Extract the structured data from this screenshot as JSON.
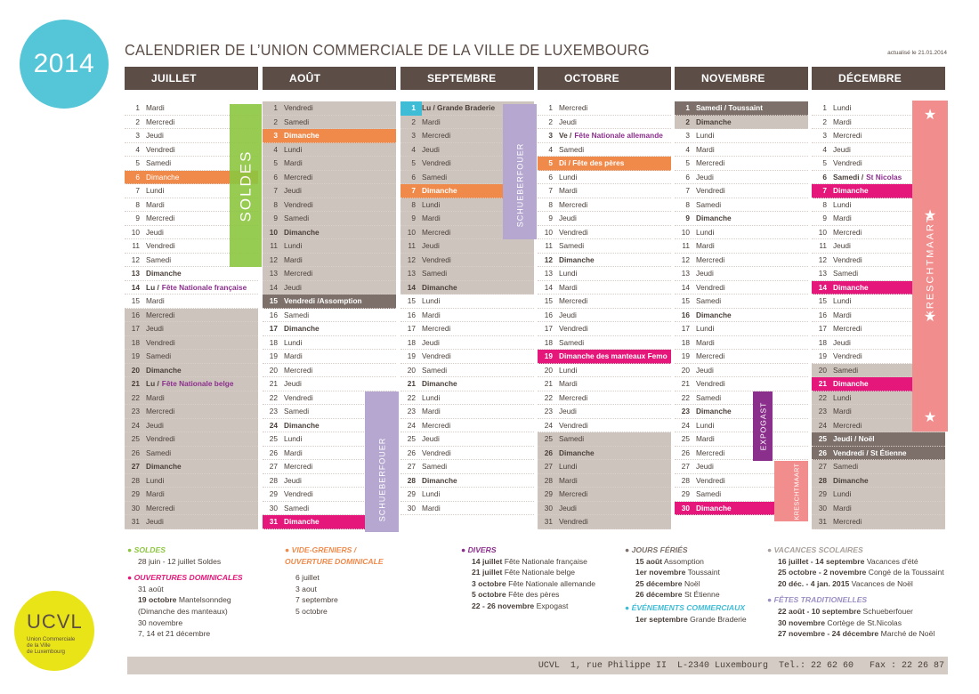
{
  "badge": "2014",
  "title": "CALENDRIER DE L’UNION COMMERCIALE DE LA VILLE DE LUXEMBOURG",
  "updated": "actualisé le 21.01.2014",
  "months": [
    {
      "name": "JUILLET",
      "days": [
        {
          "n": "1",
          "t": "Mardi"
        },
        {
          "n": "2",
          "t": "Mercredi"
        },
        {
          "n": "3",
          "t": "Jeudi"
        },
        {
          "n": "4",
          "t": "Vendredi"
        },
        {
          "n": "5",
          "t": "Samedi"
        },
        {
          "n": "6",
          "t": "Dimanche",
          "s": "orange"
        },
        {
          "n": "7",
          "t": "Lundi"
        },
        {
          "n": "8",
          "t": "Mardi"
        },
        {
          "n": "9",
          "t": "Mercredi"
        },
        {
          "n": "10",
          "t": "Jeudi"
        },
        {
          "n": "11",
          "t": "Vendredi"
        },
        {
          "n": "12",
          "t": "Samedi"
        },
        {
          "n": "13",
          "t": "Dimanche",
          "b": true
        },
        {
          "n": "14",
          "t": "Lu /",
          "e": "Fête Nationale française",
          "b": true
        },
        {
          "n": "15",
          "t": "Mardi"
        },
        {
          "n": "16",
          "t": "Mercredi",
          "s": "grey"
        },
        {
          "n": "17",
          "t": "Jeudi",
          "s": "grey"
        },
        {
          "n": "18",
          "t": "Vendredi",
          "s": "grey"
        },
        {
          "n": "19",
          "t": "Samedi",
          "s": "grey"
        },
        {
          "n": "20",
          "t": "Dimanche",
          "s": "grey",
          "b": true
        },
        {
          "n": "21",
          "t": "Lu /",
          "e": "Fête Nationale belge",
          "s": "grey",
          "b": true
        },
        {
          "n": "22",
          "t": "Mardi",
          "s": "grey"
        },
        {
          "n": "23",
          "t": "Mercredi",
          "s": "grey"
        },
        {
          "n": "24",
          "t": "Jeudi",
          "s": "grey"
        },
        {
          "n": "25",
          "t": "Vendredi",
          "s": "grey"
        },
        {
          "n": "26",
          "t": "Samedi",
          "s": "grey"
        },
        {
          "n": "27",
          "t": "Dimanche",
          "s": "grey",
          "b": true
        },
        {
          "n": "28",
          "t": "Lundi",
          "s": "grey"
        },
        {
          "n": "29",
          "t": "Mardi",
          "s": "grey"
        },
        {
          "n": "30",
          "t": "Mercredi",
          "s": "grey"
        },
        {
          "n": "31",
          "t": "Jeudi",
          "s": "grey"
        }
      ]
    },
    {
      "name": "AOÛT",
      "days": [
        {
          "n": "1",
          "t": "Vendredi",
          "s": "grey"
        },
        {
          "n": "2",
          "t": "Samedi",
          "s": "grey"
        },
        {
          "n": "3",
          "t": "Dimanche",
          "s": "orange",
          "b": true
        },
        {
          "n": "4",
          "t": "Lundi",
          "s": "grey"
        },
        {
          "n": "5",
          "t": "Mardi",
          "s": "grey"
        },
        {
          "n": "6",
          "t": "Mercredi",
          "s": "grey"
        },
        {
          "n": "7",
          "t": "Jeudi",
          "s": "grey"
        },
        {
          "n": "8",
          "t": "Vendredi",
          "s": "grey"
        },
        {
          "n": "9",
          "t": "Samedi",
          "s": "grey"
        },
        {
          "n": "10",
          "t": "Dimanche",
          "s": "grey",
          "b": true
        },
        {
          "n": "11",
          "t": "Lundi",
          "s": "grey"
        },
        {
          "n": "12",
          "t": "Mardi",
          "s": "grey"
        },
        {
          "n": "13",
          "t": "Mercredi",
          "s": "grey"
        },
        {
          "n": "14",
          "t": "Jeudi",
          "s": "grey"
        },
        {
          "n": "15",
          "t": "Vendredi /Assomption",
          "s": "dark",
          "b": true
        },
        {
          "n": "16",
          "t": "Samedi"
        },
        {
          "n": "17",
          "t": "Dimanche",
          "b": true
        },
        {
          "n": "18",
          "t": "Lundi"
        },
        {
          "n": "19",
          "t": "Mardi"
        },
        {
          "n": "20",
          "t": "Mercredi"
        },
        {
          "n": "21",
          "t": "Jeudi"
        },
        {
          "n": "22",
          "t": "Vendredi"
        },
        {
          "n": "23",
          "t": "Samedi"
        },
        {
          "n": "24",
          "t": "Dimanche",
          "b": true
        },
        {
          "n": "25",
          "t": "Lundi"
        },
        {
          "n": "26",
          "t": "Mardi"
        },
        {
          "n": "27",
          "t": "Mercredi"
        },
        {
          "n": "28",
          "t": "Jeudi"
        },
        {
          "n": "29",
          "t": "Vendredi"
        },
        {
          "n": "30",
          "t": "Samedi"
        },
        {
          "n": "31",
          "t": "Dimanche",
          "s": "pink",
          "b": true
        }
      ]
    },
    {
      "name": "SEPTEMBRE",
      "days": [
        {
          "n": "1",
          "t": "Lu / Grande Braderie",
          "s": "cyan",
          "b": true
        },
        {
          "n": "2",
          "t": "Mardi",
          "s": "grey"
        },
        {
          "n": "3",
          "t": "Mercredi",
          "s": "grey"
        },
        {
          "n": "4",
          "t": "Jeudi",
          "s": "grey"
        },
        {
          "n": "5",
          "t": "Vendredi",
          "s": "grey"
        },
        {
          "n": "6",
          "t": "Samedi",
          "s": "grey"
        },
        {
          "n": "7",
          "t": "Dimanche",
          "s": "orange",
          "b": true
        },
        {
          "n": "8",
          "t": "Lundi",
          "s": "grey"
        },
        {
          "n": "9",
          "t": "Mardi",
          "s": "grey"
        },
        {
          "n": "10",
          "t": "Mercredi",
          "s": "grey"
        },
        {
          "n": "11",
          "t": "Jeudi",
          "s": "grey"
        },
        {
          "n": "12",
          "t": "Vendredi",
          "s": "grey"
        },
        {
          "n": "13",
          "t": "Samedi",
          "s": "grey"
        },
        {
          "n": "14",
          "t": "Dimanche",
          "s": "grey",
          "b": true
        },
        {
          "n": "15",
          "t": "Lundi"
        },
        {
          "n": "16",
          "t": "Mardi"
        },
        {
          "n": "17",
          "t": "Mercredi"
        },
        {
          "n": "18",
          "t": "Jeudi"
        },
        {
          "n": "19",
          "t": "Vendredi"
        },
        {
          "n": "20",
          "t": "Samedi"
        },
        {
          "n": "21",
          "t": "Dimanche",
          "b": true
        },
        {
          "n": "22",
          "t": "Lundi"
        },
        {
          "n": "23",
          "t": "Mardi"
        },
        {
          "n": "24",
          "t": "Mercredi"
        },
        {
          "n": "25",
          "t": "Jeudi"
        },
        {
          "n": "26",
          "t": "Vendredi"
        },
        {
          "n": "27",
          "t": "Samedi"
        },
        {
          "n": "28",
          "t": "Dimanche",
          "b": true
        },
        {
          "n": "29",
          "t": "Lundi"
        },
        {
          "n": "30",
          "t": "Mardi"
        }
      ]
    },
    {
      "name": "OCTOBRE",
      "days": [
        {
          "n": "1",
          "t": "Mercredi"
        },
        {
          "n": "2",
          "t": "Jeudi"
        },
        {
          "n": "3",
          "t": "Ve /",
          "e": "Fête Nationale allemande",
          "b": true
        },
        {
          "n": "4",
          "t": "Samedi"
        },
        {
          "n": "5",
          "t": "Di / Fête des pères",
          "s": "orange",
          "b": true
        },
        {
          "n": "6",
          "t": "Lundi"
        },
        {
          "n": "7",
          "t": "Mardi"
        },
        {
          "n": "8",
          "t": "Mercredi"
        },
        {
          "n": "9",
          "t": "Jeudi"
        },
        {
          "n": "10",
          "t": "Vendredi"
        },
        {
          "n": "11",
          "t": "Samedi"
        },
        {
          "n": "12",
          "t": "Dimanche",
          "b": true
        },
        {
          "n": "13",
          "t": "Lundi"
        },
        {
          "n": "14",
          "t": "Mardi"
        },
        {
          "n": "15",
          "t": "Mercredi"
        },
        {
          "n": "16",
          "t": "Jeudi"
        },
        {
          "n": "17",
          "t": "Vendredi"
        },
        {
          "n": "18",
          "t": "Samedi"
        },
        {
          "n": "19",
          "t": "Dimanche des manteaux Femo",
          "s": "pink",
          "b": true
        },
        {
          "n": "20",
          "t": "Lundi"
        },
        {
          "n": "21",
          "t": "Mardi"
        },
        {
          "n": "22",
          "t": "Mercredi"
        },
        {
          "n": "23",
          "t": "Jeudi"
        },
        {
          "n": "24",
          "t": "Vendredi"
        },
        {
          "n": "25",
          "t": "Samedi",
          "s": "grey"
        },
        {
          "n": "26",
          "t": "Dimanche",
          "s": "grey",
          "b": true
        },
        {
          "n": "27",
          "t": "Lundi",
          "s": "grey"
        },
        {
          "n": "28",
          "t": "Mardi",
          "s": "grey"
        },
        {
          "n": "29",
          "t": "Mercredi",
          "s": "grey"
        },
        {
          "n": "30",
          "t": "Jeudi",
          "s": "grey"
        },
        {
          "n": "31",
          "t": "Vendredi",
          "s": "grey"
        }
      ]
    },
    {
      "name": "NOVEMBRE",
      "days": [
        {
          "n": "1",
          "t": "Samedi / Toussaint",
          "s": "dark",
          "b": true
        },
        {
          "n": "2",
          "t": "Dimanche",
          "s": "grey",
          "b": true
        },
        {
          "n": "3",
          "t": "Lundi"
        },
        {
          "n": "4",
          "t": "Mardi"
        },
        {
          "n": "5",
          "t": "Mercredi"
        },
        {
          "n": "6",
          "t": "Jeudi"
        },
        {
          "n": "7",
          "t": "Vendredi"
        },
        {
          "n": "8",
          "t": "Samedi"
        },
        {
          "n": "9",
          "t": "Dimanche",
          "b": true
        },
        {
          "n": "10",
          "t": "Lundi"
        },
        {
          "n": "11",
          "t": "Mardi"
        },
        {
          "n": "12",
          "t": "Mercredi"
        },
        {
          "n": "13",
          "t": "Jeudi"
        },
        {
          "n": "14",
          "t": "Vendredi"
        },
        {
          "n": "15",
          "t": "Samedi"
        },
        {
          "n": "16",
          "t": "Dimanche",
          "b": true
        },
        {
          "n": "17",
          "t": "Lundi"
        },
        {
          "n": "18",
          "t": "Mardi"
        },
        {
          "n": "19",
          "t": "Mercredi"
        },
        {
          "n": "20",
          "t": "Jeudi"
        },
        {
          "n": "21",
          "t": "Vendredi"
        },
        {
          "n": "22",
          "t": "Samedi"
        },
        {
          "n": "23",
          "t": "Dimanche",
          "b": true
        },
        {
          "n": "24",
          "t": "Lundi"
        },
        {
          "n": "25",
          "t": "Mardi"
        },
        {
          "n": "26",
          "t": "Mercredi"
        },
        {
          "n": "27",
          "t": "Jeudi"
        },
        {
          "n": "28",
          "t": "Vendredi"
        },
        {
          "n": "29",
          "t": "Samedi"
        },
        {
          "n": "30",
          "t": "Dimanche",
          "s": "pink",
          "b": true
        }
      ]
    },
    {
      "name": "DÉCEMBRE",
      "days": [
        {
          "n": "1",
          "t": "Lundi"
        },
        {
          "n": "2",
          "t": "Mardi"
        },
        {
          "n": "3",
          "t": "Mercredi"
        },
        {
          "n": "4",
          "t": "Jeudi"
        },
        {
          "n": "5",
          "t": "Vendredi"
        },
        {
          "n": "6",
          "t": "Samedi /",
          "e": "St Nicolas",
          "b": true
        },
        {
          "n": "7",
          "t": "Dimanche",
          "s": "pink",
          "b": true
        },
        {
          "n": "8",
          "t": "Lundi"
        },
        {
          "n": "9",
          "t": "Mardi"
        },
        {
          "n": "10",
          "t": "Mercredi"
        },
        {
          "n": "11",
          "t": "Jeudi"
        },
        {
          "n": "12",
          "t": "Vendredi"
        },
        {
          "n": "13",
          "t": "Samedi"
        },
        {
          "n": "14",
          "t": "Dimanche",
          "s": "pink",
          "b": true
        },
        {
          "n": "15",
          "t": "Lundi"
        },
        {
          "n": "16",
          "t": "Mardi"
        },
        {
          "n": "17",
          "t": "Mercredi"
        },
        {
          "n": "18",
          "t": "Jeudi"
        },
        {
          "n": "19",
          "t": "Vendredi"
        },
        {
          "n": "20",
          "t": "Samedi",
          "s": "grey"
        },
        {
          "n": "21",
          "t": "Dimanche",
          "s": "pink",
          "b": true
        },
        {
          "n": "22",
          "t": "Lundi",
          "s": "grey"
        },
        {
          "n": "23",
          "t": "Mardi",
          "s": "grey"
        },
        {
          "n": "24",
          "t": "Mercredi",
          "s": "grey"
        },
        {
          "n": "25",
          "t": "Jeudi / Noël",
          "s": "dark",
          "b": true
        },
        {
          "n": "26",
          "t": "Vendredi / St Étienne",
          "s": "dark",
          "b": true
        },
        {
          "n": "27",
          "t": "Samedi",
          "s": "grey"
        },
        {
          "n": "28",
          "t": "Dimanche",
          "s": "grey",
          "b": true
        },
        {
          "n": "29",
          "t": "Lundi",
          "s": "grey"
        },
        {
          "n": "30",
          "t": "Mardi",
          "s": "grey"
        },
        {
          "n": "31",
          "t": "Mercredi",
          "s": "grey"
        }
      ]
    }
  ],
  "bands": {
    "soldes": "SOLDES",
    "soldes_small": "SOLDES",
    "schueberfouer": "SCHUEBERFOUER",
    "schueberfouer_small": "SCHUEBERFOUER",
    "expogast": "EXPOGAST",
    "kreschtmaart": "KRESCHTMAART",
    "kreschtmaart_small": "KRESCHTMAART"
  },
  "legend": {
    "soldes": {
      "head": "SOLDES",
      "items": [
        {
          "b": "28 juin - 12 juillet",
          "t": " Soldes"
        }
      ]
    },
    "ouvertures": {
      "head": "OUVERTURES DOMINICALES",
      "items": [
        {
          "b": "31 août",
          "t": ""
        },
        {
          "b": "19 octobre",
          "t": " Mantelsonndeg"
        },
        {
          "b": "",
          "t": "(Dimanche des manteaux)"
        },
        {
          "b": "30 novembre",
          "t": ""
        },
        {
          "b": "7, 14 et 21 décembre",
          "t": ""
        }
      ]
    },
    "vide": {
      "head": "VIDE-GRENIERS /",
      "head2": "OUVERTURE DOMINICALE",
      "items": [
        {
          "b": "6 juillet",
          "t": ""
        },
        {
          "b": "3 aout",
          "t": ""
        },
        {
          "b": "7 septembre",
          "t": ""
        },
        {
          "b": "5 octobre",
          "t": ""
        }
      ]
    },
    "divers": {
      "head": "DIVERS",
      "items": [
        {
          "b": "14 juillet",
          "t": " Fête Nationale française"
        },
        {
          "b": "21 juillet",
          "t": " Fête Nationale belge"
        },
        {
          "b": "3 octobre",
          "t": " Fête Nationale allemande"
        },
        {
          "b": "5 octobre",
          "t": " Fête des pères"
        },
        {
          "b": "22 - 26 novembre",
          "t": " Expogast"
        }
      ]
    },
    "feries": {
      "head": "JOURS FÉRIÉS",
      "items": [
        {
          "b": "15 août",
          "t": " Assomption"
        },
        {
          "b": "1er novembre",
          "t": " Toussaint"
        },
        {
          "b": "25 décembre",
          "t": " Noël"
        },
        {
          "b": "26 décembre",
          "t": " St Étienne"
        }
      ]
    },
    "evenements": {
      "head": "ÉVÉNEMENTS COMMERCIAUX",
      "items": [
        {
          "b": "1er septembre",
          "t": " Grande Braderie"
        }
      ]
    },
    "vacances": {
      "head": "VACANCES SCOLAIRES",
      "items": [
        {
          "b": "16 juillet - 14 septembre",
          "t": " Vacances d'été"
        },
        {
          "b": "25 octobre - 2 novembre",
          "t": " Congé de la Toussaint"
        },
        {
          "b": "20 déc. - 4 jan. 2015",
          "t": " Vacances de Noël"
        }
      ]
    },
    "fetes": {
      "head": "FÊTES TRADITIONELLES",
      "items": [
        {
          "b": "22 août - 10 septembre",
          "t": " Schueberfouer"
        },
        {
          "b": "30 novembre",
          "t": " Cortège de St.Nicolas"
        },
        {
          "b": "27 novembre - 24 décembre",
          "t": " Marché de Noël"
        }
      ]
    }
  },
  "ucvl": {
    "big": "UCVL",
    "l1": "Union Commerciale",
    "l2": "de la Ville",
    "l3": "de Luxembourg"
  },
  "footer": "UCVL  1, rue Philippe II  L-2340 Luxembourg  Tel.: 22 62 60   Fax : 22 26 87",
  "colors": {
    "brown": "#5c4e47",
    "grey": "#cec4be",
    "orange": "#f08a4b",
    "pink": "#e6177a",
    "cyan": "#40bdd6",
    "green": "#8cc63f",
    "lilac": "#b5a7cf",
    "purple": "#8b2f8c",
    "salmon": "#f28d8d",
    "yellow": "#e9e417"
  }
}
